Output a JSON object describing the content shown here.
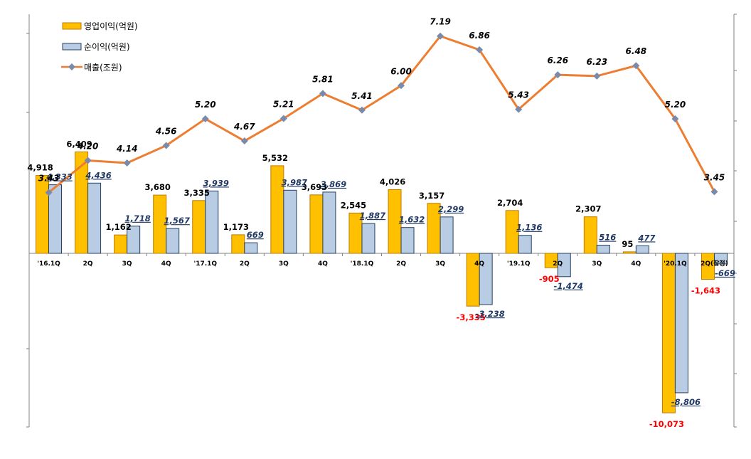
{
  "chart_data": {
    "type": "bar",
    "categories": [
      "'16.1Q",
      "2Q",
      "3Q",
      "4Q",
      "'17.1Q",
      "2Q",
      "3Q",
      "4Q",
      "'18.1Q",
      "2Q",
      "3Q",
      "4Q",
      "'19.1Q",
      "2Q",
      "3Q",
      "4Q",
      "'20.1Q",
      "2Q(잠정)"
    ],
    "series": [
      {
        "name": "영업이익(억원)",
        "kind": "bar",
        "color": "#FFC000",
        "stroke": "#C07A00",
        "values": [
          4918,
          6409,
          1162,
          3680,
          3335,
          1173,
          5532,
          3693,
          2545,
          4026,
          3157,
          -3335,
          2704,
          -905,
          2307,
          95,
          -10073,
          -1643
        ],
        "labels": [
          "4,918",
          "6,409",
          "1,162",
          "3,680",
          "3,335",
          "1,173",
          "5,532",
          "3,693",
          "2,545",
          "4,026",
          "3,157",
          "-3,335",
          "2,704",
          "-905",
          "2,307",
          "95",
          "-10,073",
          "-1,643"
        ]
      },
      {
        "name": "순이익(억원)",
        "kind": "bar",
        "color": "#B8CCE4",
        "stroke": "#243F60",
        "values": [
          4333,
          4436,
          1718,
          1567,
          3939,
          669,
          3987,
          3869,
          1887,
          1632,
          2299,
          -3238,
          1136,
          -1474,
          516,
          477,
          -8806,
          -669
        ],
        "labels": [
          "4,333",
          "4,436",
          "1,718",
          "1,567",
          "3,939",
          "669",
          "3,987",
          "3,869",
          "1,887",
          "1,632",
          "2,299",
          "-3,238",
          "1,136",
          "-1,474",
          "516",
          "477",
          "-8,806",
          "-669"
        ]
      },
      {
        "name": "매출(조원)",
        "kind": "line",
        "color": "#ED7D31",
        "marker_color": "#7A8AAA",
        "values": [
          3.43,
          4.2,
          4.14,
          4.56,
          5.2,
          4.67,
          5.21,
          5.81,
          5.41,
          6.0,
          7.19,
          6.86,
          5.43,
          6.26,
          6.23,
          6.48,
          5.2,
          3.45
        ],
        "labels": [
          "3.43",
          "4.20",
          "4.14",
          "4.56",
          "5.20",
          "4.67",
          "5.21",
          "5.81",
          "5.41",
          "6.00",
          "7.19",
          "6.86",
          "5.43",
          "6.26",
          "6.23",
          "6.48",
          "5.20",
          "3.45"
        ]
      }
    ],
    "negative_label_color": "#FF0000",
    "net_label_color": "#1F3864",
    "legend_position": "top-left",
    "bar_axis_range": [
      -10000,
      14000
    ],
    "line_axis_range": [
      -3.2,
      8.5
    ],
    "grid": false
  }
}
